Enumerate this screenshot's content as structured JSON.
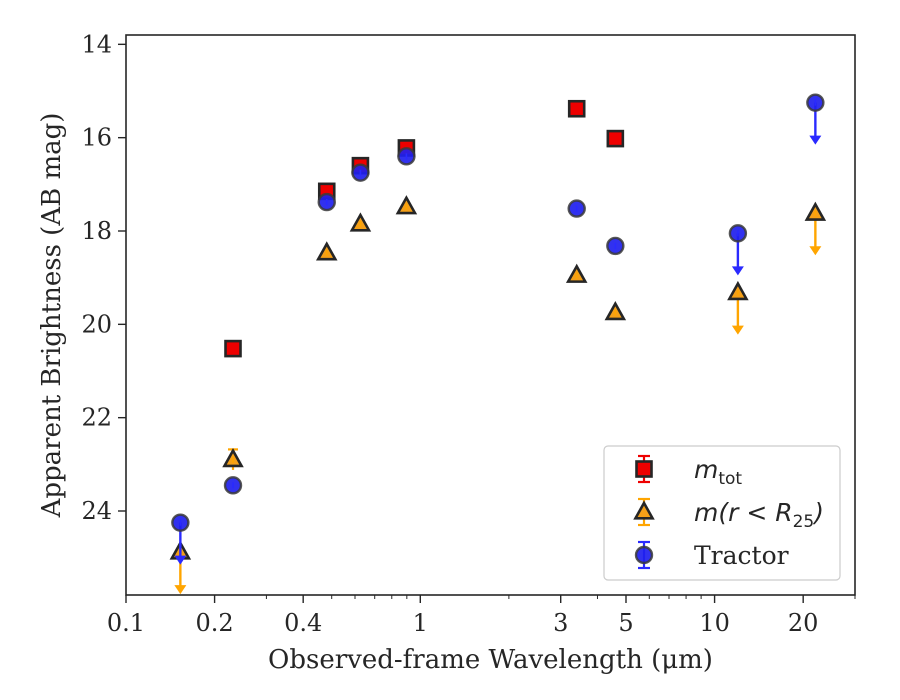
{
  "chart_data": {
    "type": "scatter",
    "xlabel": "Observed-frame Wavelength (μm)",
    "ylabel": "Apparent Brightness (AB mag)",
    "xscale": "log",
    "xlim": [
      0.1,
      30
    ],
    "ylim": [
      25.8,
      13.8
    ],
    "y_inverted": true,
    "grid": false,
    "legend_position": "lower-right",
    "xticks": [
      {
        "value": 0.1,
        "label": "0.1"
      },
      {
        "value": 0.2,
        "label": "0.2"
      },
      {
        "value": 0.4,
        "label": "0.4"
      },
      {
        "value": 1,
        "label": "1"
      },
      {
        "value": 3,
        "label": "3"
      },
      {
        "value": 5,
        "label": "5"
      },
      {
        "value": 10,
        "label": "10"
      },
      {
        "value": 20,
        "label": "20"
      }
    ],
    "yticks": [
      {
        "value": 14,
        "label": "14"
      },
      {
        "value": 16,
        "label": "16"
      },
      {
        "value": 18,
        "label": "18"
      },
      {
        "value": 20,
        "label": "20"
      },
      {
        "value": 22,
        "label": "22"
      },
      {
        "value": 24,
        "label": "24"
      }
    ],
    "series": [
      {
        "name": "m_tot",
        "legend_main": "m",
        "legend_sub": "tot",
        "marker": "square",
        "color": "#ee0000",
        "errcolor": "#ee0000",
        "points": [
          {
            "x": 0.231,
            "y": 20.52
          },
          {
            "x": 0.481,
            "y": 17.15
          },
          {
            "x": 0.626,
            "y": 16.6
          },
          {
            "x": 0.897,
            "y": 16.22
          },
          {
            "x": 3.4,
            "y": 15.38
          },
          {
            "x": 4.6,
            "y": 16.02
          }
        ]
      },
      {
        "name": "m(r<R25)",
        "legend_main": "m(r < R",
        "legend_sub": "25",
        "legend_tail": ")",
        "marker": "triangle",
        "color": "#f5a018",
        "errcolor": "#ffa500",
        "points": [
          {
            "x": 0.153,
            "y": 24.88,
            "upper_limit": true
          },
          {
            "x": 0.231,
            "y": 22.9,
            "err": 0.22
          },
          {
            "x": 0.481,
            "y": 18.47
          },
          {
            "x": 0.626,
            "y": 17.85
          },
          {
            "x": 0.897,
            "y": 17.48
          },
          {
            "x": 3.4,
            "y": 18.95
          },
          {
            "x": 4.6,
            "y": 19.75
          },
          {
            "x": 12.0,
            "y": 19.32,
            "upper_limit": true
          },
          {
            "x": 22.0,
            "y": 17.62,
            "upper_limit": true
          }
        ]
      },
      {
        "name": "Tractor",
        "legend_main": "Tractor",
        "marker": "circle",
        "color": "#1f1fee",
        "errcolor": "#2a2aff",
        "points": [
          {
            "x": 0.153,
            "y": 24.25,
            "upper_limit": true
          },
          {
            "x": 0.231,
            "y": 23.45
          },
          {
            "x": 0.481,
            "y": 17.38
          },
          {
            "x": 0.626,
            "y": 16.75
          },
          {
            "x": 0.897,
            "y": 16.4
          },
          {
            "x": 3.4,
            "y": 17.52
          },
          {
            "x": 4.6,
            "y": 18.32
          },
          {
            "x": 12.0,
            "y": 18.05,
            "upper_limit": true
          },
          {
            "x": 22.0,
            "y": 15.25,
            "upper_limit": true
          }
        ]
      }
    ]
  }
}
